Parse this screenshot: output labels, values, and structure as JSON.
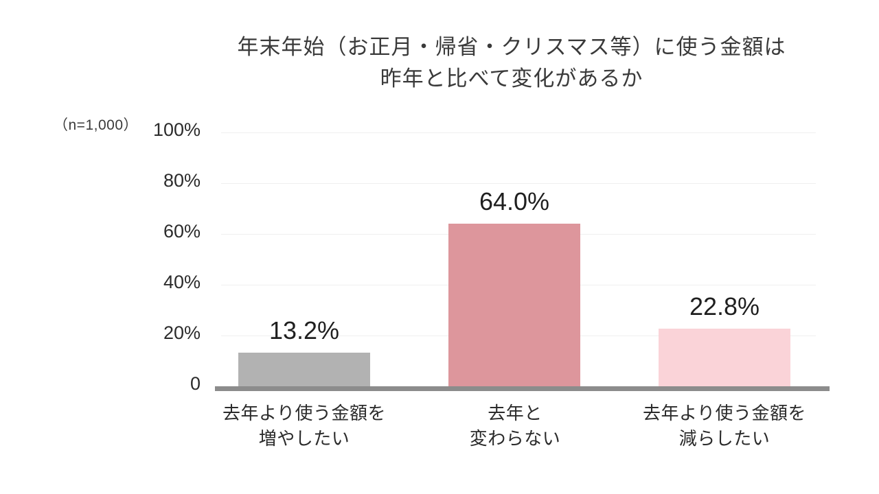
{
  "title": {
    "line1": "年末年始（お正月・帰省・クリスマス等）に使う金額は",
    "line2": "昨年と比べて変化があるか"
  },
  "sample_label": "（n=1,000）",
  "y_axis": {
    "ticks": [
      "100%",
      "80%",
      "60%",
      "40%",
      "20%",
      "0"
    ]
  },
  "chart_data": {
    "type": "bar",
    "title": "年末年始（お正月・帰省・クリスマス等）に使う金額は昨年と比べて変化があるか",
    "sample_size_note": "（n=1,000）",
    "n": 1000,
    "categories": [
      [
        "去年より使う金額を",
        "増やしたい"
      ],
      [
        "去年と",
        "変わらない"
      ],
      [
        "去年より使う金額を",
        "減らしたい"
      ]
    ],
    "values": [
      13.2,
      64.0,
      22.8
    ],
    "value_labels": [
      "13.2%",
      "64.0%",
      "22.8%"
    ],
    "unit": "%",
    "ylim": [
      0,
      100
    ],
    "ytick_values": [
      0,
      20,
      40,
      60,
      80,
      100
    ],
    "grid": true,
    "legend": "none",
    "bar_colors": [
      "#b2b2b2",
      "#dd969c",
      "#fad3d8"
    ],
    "colors": {
      "axis_line": "#8c8c8c",
      "gridline": "#efefef",
      "text": "#2b2b2b",
      "background": "#ffffff"
    }
  }
}
